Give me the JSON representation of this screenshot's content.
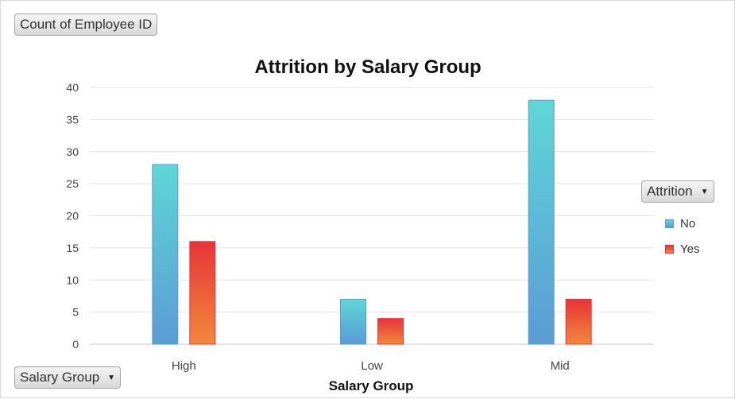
{
  "value_field": {
    "label": "Count of Employee ID"
  },
  "axis_field": {
    "label": "Salary Group",
    "icon": "dropdown-arrow-icon"
  },
  "legend_field": {
    "label": "Attrition",
    "icon": "dropdown-arrow-icon"
  },
  "colors": {
    "No_top": "#5ed6d6",
    "No_bottom": "#5b9bd5",
    "Yes_top": "#e8343a",
    "Yes_bottom": "#f0883a",
    "grid": "#e0e0e0",
    "axis_text": "#444444"
  },
  "chart_data": {
    "type": "bar",
    "title": "Attrition by Salary Group",
    "xlabel": "Salary Group",
    "ylabel": "",
    "categories": [
      "High",
      "Low",
      "Mid"
    ],
    "series": [
      {
        "name": "No",
        "values": [
          28,
          7,
          38
        ]
      },
      {
        "name": "Yes",
        "values": [
          16,
          4,
          7
        ]
      }
    ],
    "ylim": [
      0,
      40
    ],
    "yticks": [
      "0",
      "5",
      "10",
      "15",
      "20",
      "25",
      "30",
      "35",
      "40"
    ],
    "grid": true,
    "legend": "right"
  }
}
